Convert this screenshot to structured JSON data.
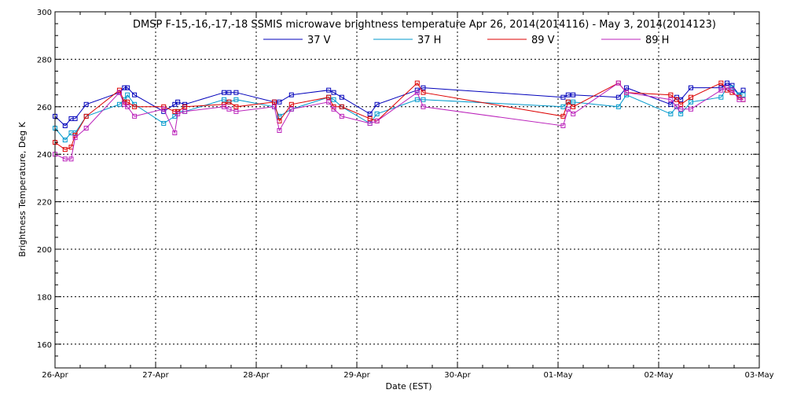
{
  "chart_data": {
    "type": "line",
    "title": "DMSP F-15,-16,-17,-18 SSMIS microwave brightness temperature Apr 26, 2014(2014116) - May  3, 2014(2014123)",
    "xlabel": "Date (EST)",
    "ylabel": "Brightness Temperature, Deg K",
    "x_ticks": [
      "26-Apr",
      "27-Apr",
      "28-Apr",
      "29-Apr",
      "30-Apr",
      "01-May",
      "02-May",
      "03-May"
    ],
    "y_ticks": [
      "160",
      "180",
      "200",
      "220",
      "240",
      "260",
      "280",
      "300"
    ],
    "xlim": [
      0,
      7
    ],
    "ylim": [
      150,
      300
    ],
    "grid": true,
    "legend_position": "top",
    "series": [
      {
        "name": "37 V",
        "color": "#0000bb",
        "x": [
          0.0,
          0.1,
          0.16,
          0.2,
          0.31,
          0.64,
          0.69,
          0.72,
          0.79,
          1.08,
          1.19,
          1.22,
          1.29,
          1.68,
          1.73,
          1.8,
          2.18,
          2.23,
          2.35,
          2.72,
          2.77,
          2.85,
          3.13,
          3.2,
          3.6,
          3.66,
          5.05,
          5.1,
          5.15,
          5.6,
          5.68,
          6.12,
          6.18,
          6.22,
          6.32,
          6.62,
          6.68,
          6.73,
          6.8,
          6.84
        ],
        "y": [
          256,
          252,
          255,
          255,
          261,
          266,
          268,
          268,
          265,
          258,
          261,
          262,
          261,
          266,
          266,
          266,
          262,
          262,
          265,
          267,
          266,
          264,
          257,
          261,
          267,
          268,
          264,
          265,
          265,
          264,
          268,
          261,
          264,
          263,
          268,
          268,
          270,
          269,
          265,
          267
        ]
      },
      {
        "name": "37 H",
        "color": "#0099cc",
        "x": [
          0.0,
          0.1,
          0.16,
          0.2,
          0.31,
          0.64,
          0.69,
          0.72,
          0.79,
          1.08,
          1.19,
          1.22,
          1.29,
          1.68,
          1.73,
          1.8,
          2.18,
          2.23,
          2.35,
          2.72,
          2.77,
          2.85,
          3.13,
          3.2,
          3.6,
          3.66,
          5.05,
          5.1,
          5.15,
          5.6,
          5.68,
          6.12,
          6.18,
          6.22,
          6.32,
          6.62,
          6.68,
          6.73,
          6.8,
          6.84
        ],
        "y": [
          251,
          246,
          249,
          249,
          256,
          261,
          263,
          265,
          261,
          253,
          256,
          258,
          258,
          263,
          262,
          263,
          260,
          256,
          259,
          264,
          263,
          260,
          253,
          257,
          263,
          263,
          260,
          262,
          262,
          260,
          265,
          257,
          260,
          257,
          262,
          264,
          268,
          268,
          265,
          265
        ]
      },
      {
        "name": "89 V",
        "color": "#dd0000",
        "x": [
          0.0,
          0.1,
          0.16,
          0.2,
          0.31,
          0.64,
          0.69,
          0.72,
          0.79,
          1.08,
          1.19,
          1.22,
          1.29,
          1.68,
          1.73,
          1.8,
          2.18,
          2.23,
          2.35,
          2.72,
          2.77,
          2.85,
          3.13,
          3.2,
          3.6,
          3.66,
          5.05,
          5.1,
          5.15,
          5.6,
          5.68,
          6.12,
          6.18,
          6.22,
          6.32,
          6.62,
          6.68,
          6.73,
          6.8,
          6.84
        ],
        "y": [
          245,
          242,
          243,
          248,
          256,
          267,
          262,
          262,
          260,
          260,
          258,
          258,
          260,
          261,
          262,
          260,
          262,
          254,
          261,
          264,
          260,
          260,
          255,
          254,
          270,
          266,
          256,
          262,
          260,
          270,
          266,
          265,
          263,
          261,
          264,
          270,
          267,
          266,
          264,
          263
        ]
      },
      {
        "name": "89 H",
        "color": "#bb22bb",
        "x": [
          0.0,
          0.1,
          0.16,
          0.2,
          0.31,
          0.64,
          0.69,
          0.72,
          0.79,
          1.08,
          1.19,
          1.22,
          1.29,
          1.68,
          1.73,
          1.8,
          2.18,
          2.23,
          2.35,
          2.72,
          2.77,
          2.85,
          3.13,
          3.2,
          3.6,
          3.66,
          5.05,
          5.1,
          5.15,
          5.6,
          5.68,
          6.12,
          6.18,
          6.22,
          6.32,
          6.62,
          6.68,
          6.73,
          6.8,
          6.84
        ],
        "y": [
          240,
          238,
          238,
          247,
          251,
          266,
          261,
          260,
          256,
          259,
          249,
          257,
          258,
          260,
          259,
          258,
          260,
          250,
          259,
          262,
          259,
          256,
          253,
          254,
          266,
          260,
          252,
          259,
          257,
          270,
          266,
          263,
          260,
          259,
          259,
          267,
          268,
          267,
          263,
          263
        ]
      }
    ]
  }
}
